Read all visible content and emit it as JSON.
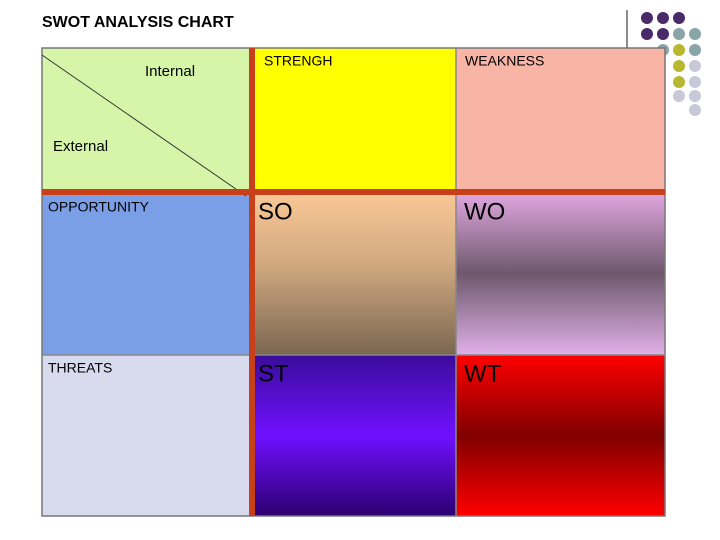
{
  "header": {
    "title": "SWOT ANALYSIS CHART"
  },
  "corner": {
    "column_label": "Internal",
    "row_label": "External"
  },
  "columns": [
    "STRENGH",
    "WEAKNESS"
  ],
  "rows": [
    "OPPORTUNITY",
    "THREATS"
  ],
  "cells": [
    [
      "SO",
      "WO"
    ],
    [
      "ST",
      "WT"
    ]
  ]
}
